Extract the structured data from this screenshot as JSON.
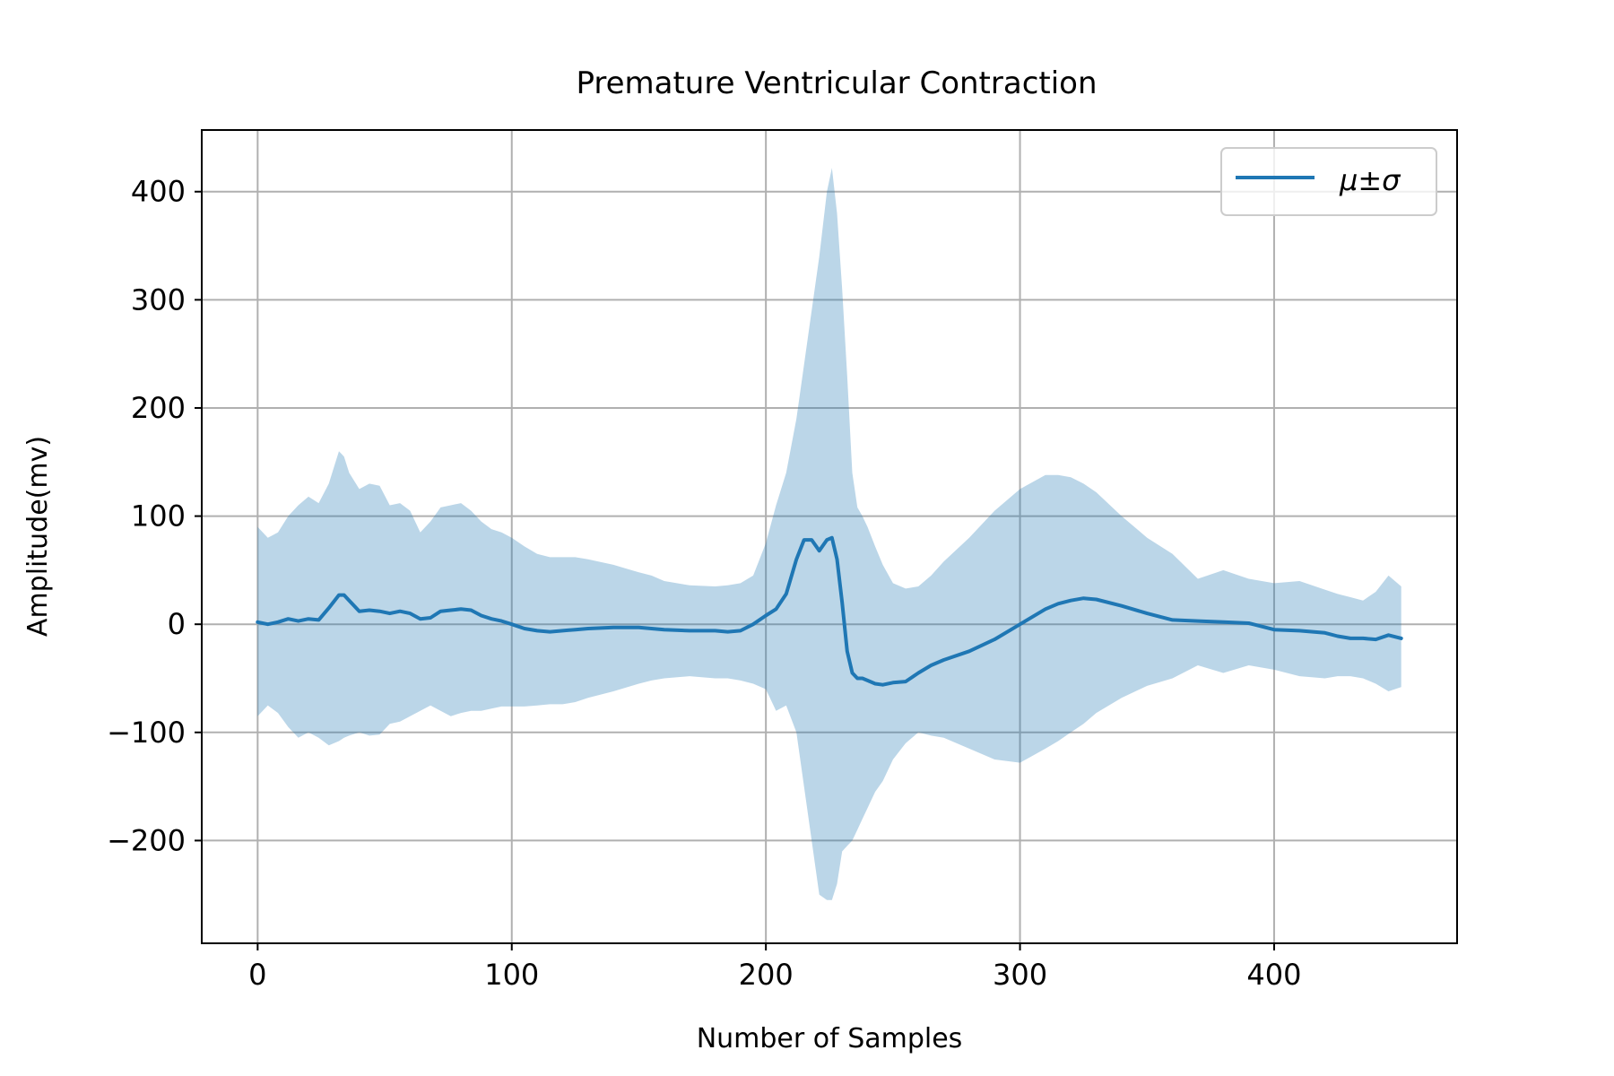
{
  "chart_data": {
    "type": "line",
    "title": "Premature Ventricular Contraction",
    "xlabel": "Number of Samples",
    "ylabel": "Amplitude(mv)",
    "xlim": [
      -22,
      472
    ],
    "ylim": [
      -295,
      457
    ],
    "xticks": [
      0,
      100,
      200,
      300,
      400
    ],
    "xtick_labels": [
      "0",
      "100",
      "200",
      "300",
      "400"
    ],
    "yticks": [
      -200,
      -100,
      0,
      100,
      200,
      300,
      400
    ],
    "ytick_labels": [
      "−200",
      "−100",
      "0",
      "100",
      "200",
      "300",
      "400"
    ],
    "grid": true,
    "legend": {
      "position": "upper right",
      "entries": [
        {
          "label": "μ±σ",
          "color": "#1f77b4"
        }
      ]
    },
    "colors": {
      "line": "#1f77b4",
      "band": "#1f77b4",
      "band_opacity": 0.3,
      "grid": "#b0b0b0"
    },
    "series": [
      {
        "name": "μ±σ",
        "x": [
          0,
          4,
          8,
          12,
          16,
          20,
          24,
          28,
          32,
          34,
          36,
          40,
          44,
          48,
          52,
          56,
          60,
          64,
          68,
          72,
          76,
          80,
          84,
          88,
          92,
          96,
          100,
          105,
          110,
          115,
          120,
          125,
          130,
          140,
          150,
          155,
          160,
          170,
          180,
          185,
          190,
          195,
          200,
          204,
          208,
          212,
          215,
          218,
          221,
          224,
          226,
          228,
          230,
          232,
          234,
          236,
          238,
          240,
          243,
          246,
          250,
          255,
          260,
          265,
          270,
          280,
          290,
          300,
          310,
          315,
          320,
          325,
          330,
          340,
          350,
          360,
          370,
          380,
          390,
          400,
          410,
          420,
          425,
          430,
          435,
          440,
          445,
          450
        ],
        "mean": [
          2,
          0,
          2,
          5,
          3,
          5,
          4,
          15,
          27,
          27,
          22,
          12,
          13,
          12,
          10,
          12,
          10,
          5,
          6,
          12,
          13,
          14,
          13,
          8,
          5,
          3,
          0,
          -4,
          -6,
          -7,
          -6,
          -5,
          -4,
          -3,
          -3,
          -4,
          -5,
          -6,
          -6,
          -7,
          -6,
          0,
          8,
          14,
          28,
          60,
          78,
          78,
          68,
          78,
          80,
          60,
          20,
          -25,
          -45,
          -50,
          -50,
          -52,
          -55,
          -56,
          -54,
          -53,
          -45,
          -38,
          -33,
          -25,
          -14,
          0,
          14,
          19,
          22,
          24,
          23,
          17,
          10,
          4,
          3,
          2,
          1,
          -5,
          -6,
          -8,
          -11,
          -13,
          -13,
          -14,
          -10,
          -13
        ],
        "upper": [
          90,
          80,
          85,
          100,
          110,
          118,
          112,
          130,
          160,
          155,
          140,
          125,
          130,
          128,
          110,
          112,
          105,
          85,
          95,
          108,
          110,
          112,
          105,
          95,
          88,
          85,
          80,
          72,
          65,
          62,
          62,
          62,
          60,
          55,
          48,
          45,
          40,
          36,
          35,
          36,
          38,
          45,
          75,
          110,
          140,
          190,
          240,
          290,
          340,
          400,
          422,
          380,
          310,
          230,
          140,
          108,
          100,
          90,
          72,
          55,
          38,
          33,
          35,
          45,
          58,
          80,
          105,
          125,
          138,
          138,
          136,
          130,
          122,
          100,
          80,
          65,
          42,
          50,
          42,
          38,
          40,
          32,
          28,
          25,
          22,
          30,
          45,
          35
        ],
        "lower": [
          -85,
          -75,
          -82,
          -95,
          -105,
          -100,
          -105,
          -112,
          -108,
          -105,
          -103,
          -100,
          -103,
          -102,
          -92,
          -90,
          -85,
          -80,
          -75,
          -80,
          -85,
          -82,
          -80,
          -80,
          -78,
          -76,
          -76,
          -76,
          -75,
          -74,
          -74,
          -72,
          -68,
          -62,
          -55,
          -52,
          -50,
          -48,
          -50,
          -50,
          -52,
          -55,
          -60,
          -80,
          -75,
          -100,
          -150,
          -200,
          -250,
          -255,
          -255,
          -240,
          -210,
          -205,
          -200,
          -190,
          -180,
          -170,
          -155,
          -145,
          -125,
          -110,
          -100,
          -103,
          -105,
          -115,
          -125,
          -128,
          -115,
          -108,
          -100,
          -92,
          -82,
          -68,
          -57,
          -50,
          -38,
          -45,
          -38,
          -42,
          -48,
          -50,
          -48,
          -48,
          -50,
          -55,
          -62,
          -58
        ]
      }
    ]
  }
}
